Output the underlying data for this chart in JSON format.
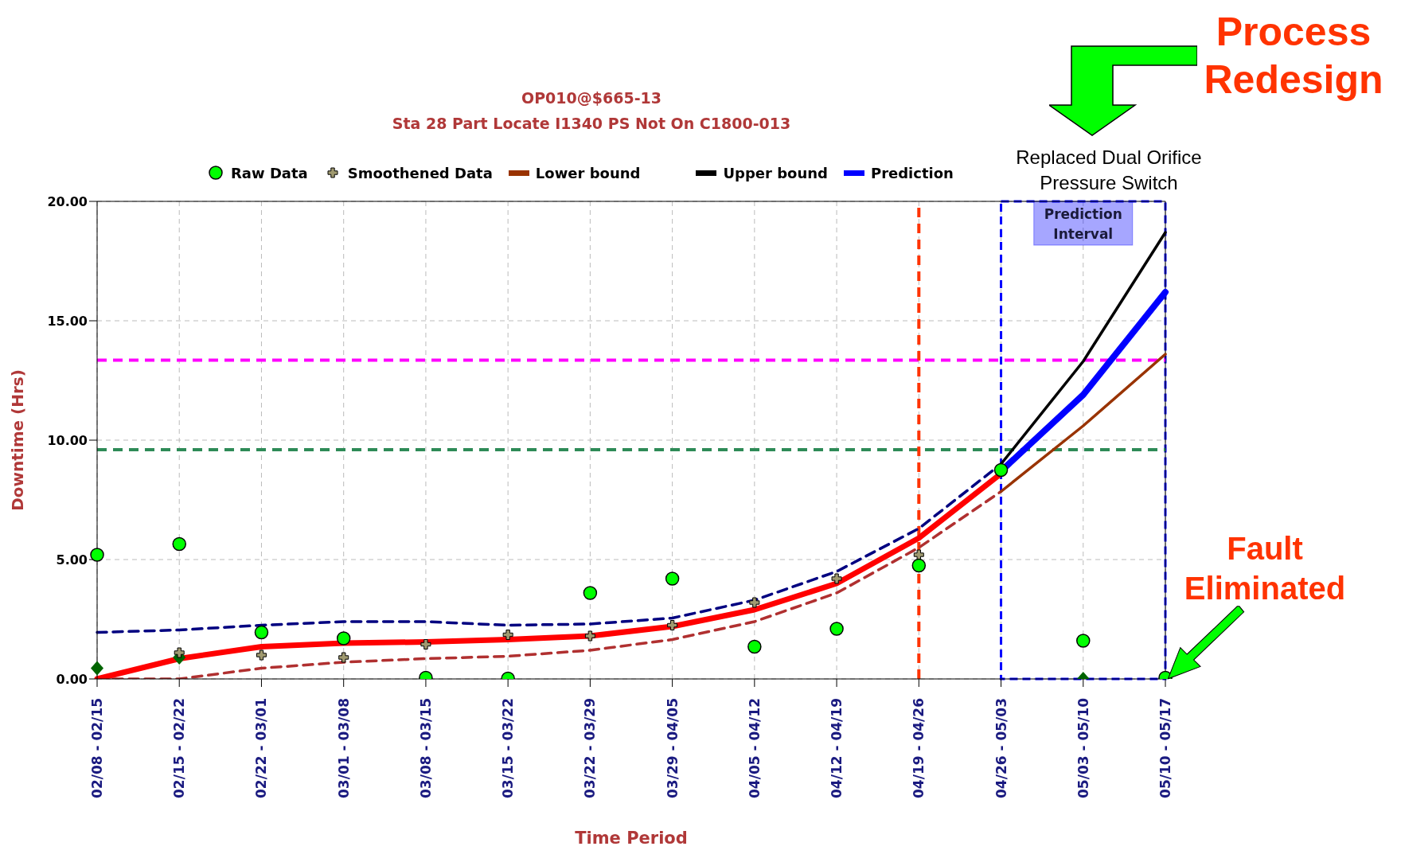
{
  "chart_data": {
    "type": "line",
    "title": "OP010@$665-13",
    "subtitle": "Sta 28 Part Locate I1340 PS Not On C1800-013",
    "xlabel": "Time Period",
    "ylabel": "Downtime (Hrs)",
    "categories": [
      "02/08 - 02/15",
      "02/15 - 02/22",
      "02/22 - 03/01",
      "03/01 - 03/08",
      "03/08 - 03/15",
      "03/15 - 03/22",
      "03/22 - 03/29",
      "03/29 - 04/05",
      "04/05 - 04/12",
      "04/12 - 04/19",
      "04/19 - 04/26",
      "04/26 - 05/03",
      "05/03 - 05/10",
      "05/10 - 05/17"
    ],
    "series": [
      {
        "color": "#000080",
        "line_style": "dashed",
        "values": [
          1.95,
          2.05,
          2.25,
          2.4,
          2.4,
          2.25,
          2.3,
          2.55,
          3.3,
          4.5,
          6.3,
          9.0,
          null,
          null
        ]
      },
      {
        "color": "#b03030",
        "line_style": "dashed",
        "values": [
          0,
          0,
          0.45,
          0.7,
          0.85,
          0.95,
          1.2,
          1.65,
          2.4,
          3.6,
          5.5,
          7.85,
          null,
          null
        ]
      },
      {
        "color": "#ff0000",
        "values": [
          0,
          0.85,
          1.35,
          1.5,
          1.55,
          1.65,
          1.8,
          2.2,
          2.9,
          4.0,
          5.9,
          8.6,
          null,
          null
        ]
      },
      {
        "name": "Prediction",
        "color": "#0000ff",
        "values": [
          null,
          null,
          null,
          null,
          null,
          null,
          null,
          null,
          null,
          null,
          null,
          8.7,
          11.9,
          16.2
        ]
      },
      {
        "name": "Upper bound",
        "color": "#000000",
        "values": [
          null,
          null,
          null,
          null,
          null,
          null,
          null,
          null,
          null,
          null,
          null,
          9.0,
          13.3,
          18.7
        ]
      },
      {
        "name": "Lower bound",
        "color": "#993300",
        "values": [
          null,
          null,
          null,
          null,
          null,
          null,
          null,
          null,
          null,
          null,
          null,
          7.85,
          10.6,
          13.6
        ]
      },
      {
        "type": "scatter",
        "color": "#006400",
        "marker": "diamond",
        "values": [
          0.45,
          0.9,
          null,
          null,
          null,
          null,
          null,
          null,
          null,
          null,
          null,
          null,
          0,
          null
        ]
      },
      {
        "name": "Smoothened Data",
        "type": "scatter",
        "color": "#a09a70",
        "marker": "cross",
        "values": [
          null,
          1.1,
          1.0,
          0.9,
          1.45,
          1.85,
          1.8,
          2.25,
          3.2,
          4.2,
          5.2,
          null,
          null,
          null
        ]
      },
      {
        "name": "Raw Data",
        "type": "scatter",
        "color": "#00ff00",
        "marker": "circle",
        "values": [
          5.2,
          5.65,
          1.95,
          1.7,
          0.05,
          0.02,
          3.6,
          4.2,
          1.35,
          2.1,
          4.75,
          8.75,
          1.6,
          0.05
        ]
      }
    ],
    "ylim": [
      0,
      20
    ],
    "yticks": [
      {
        "value": 0,
        "label": "0.00"
      },
      {
        "value": 5,
        "label": "5.00"
      },
      {
        "value": 10,
        "label": "10.00"
      },
      {
        "value": 15,
        "label": "15.00"
      },
      {
        "value": 20,
        "label": "20.00"
      }
    ],
    "ref_lines": [
      {
        "axis": "y",
        "value": 13.35,
        "color": "#ff00ff",
        "line_style": "dashed"
      },
      {
        "axis": "y",
        "value": 9.6,
        "color": "#2e8b57",
        "line_style": "dashed"
      },
      {
        "axis": "x",
        "value": "04/19 - 04/26",
        "color": "#ff3300",
        "line_style": "dashed"
      }
    ],
    "bands": [
      {
        "axis": "x",
        "from": "04/26 - 05/03",
        "to": "05/10 - 05/17",
        "label": "Prediction Interval",
        "color": "#0000ff"
      }
    ],
    "annotations": [
      "Process Redesign",
      "Replaced Dual Orifice Pressure Switch",
      {
        "text": "Fault Eliminated",
        "x": "05/10 - 05/17",
        "y": 0
      }
    ],
    "grid": true,
    "legend": "top"
  }
}
